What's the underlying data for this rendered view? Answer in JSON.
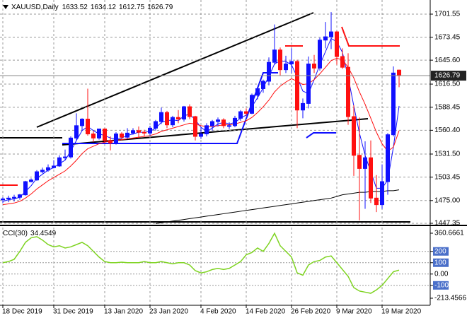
{
  "chart_data": [
    {
      "type": "candlestick",
      "title": "XAUUSD,Daily",
      "categories": [
        "18 Dec 2019",
        null,
        null,
        null,
        null,
        null,
        null,
        null,
        null,
        "31 Dec 2019",
        null,
        null,
        null,
        null,
        null,
        null,
        null,
        null,
        "13 Jan 2020",
        null,
        null,
        null,
        null,
        null,
        null,
        null,
        "23 Jan 2020",
        null,
        null,
        null,
        null,
        null,
        null,
        null,
        null,
        "4 Feb 2020",
        null,
        null,
        null,
        null,
        null,
        null,
        null,
        "14 Feb 2020",
        null,
        null,
        null,
        null,
        null,
        null,
        null,
        "26 Feb 2020",
        null,
        null,
        null,
        null,
        null,
        null,
        null,
        "9 Mar 2020",
        null,
        null,
        null,
        null,
        null,
        null,
        null,
        "19 Mar 2020",
        null,
        null,
        null
      ],
      "open": [
        1476,
        1477,
        1478,
        1479,
        1482,
        1498,
        1500,
        1510,
        1512,
        1515,
        1517,
        1527,
        1528,
        1551,
        1566,
        1574,
        1556,
        1551,
        1562,
        1548,
        1545,
        1556,
        1552,
        1557,
        1560,
        1558,
        1557,
        1563,
        1571,
        1582,
        1567,
        1576,
        1574,
        1589,
        1577,
        1553,
        1556,
        1566,
        1571,
        1573,
        1566,
        1566,
        1575,
        1583,
        1581,
        1603,
        1611,
        1620,
        1643,
        1658,
        1634,
        1641,
        1644,
        1585,
        1593,
        1641,
        1636,
        1670,
        1674,
        1680,
        1650,
        1637,
        1577,
        1530,
        1514,
        1527,
        1478,
        1470,
        1498,
        1555,
        1633.52
      ],
      "high": [
        1479,
        1481,
        1482,
        1483,
        1499,
        1502,
        1512,
        1515,
        1519,
        1524,
        1530,
        1537,
        1553,
        1581,
        1575,
        1611,
        1560,
        1562,
        1563,
        1553,
        1558,
        1558,
        1563,
        1563,
        1565,
        1561,
        1566,
        1573,
        1588,
        1584,
        1578,
        1585,
        1590,
        1592,
        1578,
        1564,
        1569,
        1573,
        1576,
        1575,
        1570,
        1578,
        1585,
        1587,
        1605,
        1613,
        1622,
        1649,
        1689,
        1661,
        1651,
        1660,
        1646,
        1599,
        1650,
        1652,
        1673,
        1692,
        1704,
        1681,
        1660,
        1654,
        1591,
        1576,
        1547,
        1548,
        1506,
        1519,
        1557,
        1638,
        1634.12
      ],
      "low": [
        1472,
        1473,
        1474,
        1476,
        1481,
        1497,
        1499,
        1508,
        1510,
        1514,
        1516,
        1524,
        1526,
        1548,
        1560,
        1554,
        1546,
        1549,
        1545,
        1536,
        1543,
        1548,
        1550,
        1555,
        1551,
        1553,
        1554,
        1560,
        1568,
        1563,
        1564,
        1569,
        1571,
        1574,
        1548,
        1550,
        1553,
        1560,
        1565,
        1563,
        1562,
        1564,
        1572,
        1578,
        1580,
        1598,
        1606,
        1615,
        1640,
        1627,
        1630,
        1630,
        1563,
        1575,
        1587,
        1630,
        1633,
        1660,
        1659,
        1640,
        1635,
        1567,
        1505,
        1451,
        1465,
        1472,
        1461,
        1465,
        1482,
        1553,
        1612.75
      ],
      "close": [
        1477,
        1478,
        1479,
        1482,
        1498,
        1500,
        1510,
        1512,
        1515,
        1517,
        1527,
        1528,
        1551,
        1566,
        1574,
        1556,
        1551,
        1562,
        1548,
        1545,
        1556,
        1552,
        1557,
        1560,
        1558,
        1557,
        1563,
        1571,
        1582,
        1567,
        1576,
        1574,
        1589,
        1577,
        1553,
        1556,
        1566,
        1571,
        1573,
        1566,
        1566,
        1575,
        1583,
        1581,
        1603,
        1611,
        1620,
        1643,
        1658,
        1634,
        1641,
        1644,
        1585,
        1593,
        1641,
        1636,
        1670,
        1674,
        1680,
        1650,
        1637,
        1577,
        1530,
        1514,
        1527,
        1478,
        1470,
        1498,
        1555,
        1630,
        1626.79
      ],
      "up_color": "#1010ff",
      "down_color": "#ff1010",
      "series": [
        {
          "color": "#1010ff",
          "values": [
            1474,
            1476,
            1477,
            1479,
            1486,
            1493,
            1502,
            1507,
            1512,
            1515,
            1520,
            1524,
            1535,
            1548,
            1560,
            1565,
            1560,
            1556,
            1554,
            1551,
            1550,
            1551,
            1554,
            1556,
            1558,
            1558,
            1559,
            1563,
            1570,
            1572,
            1573,
            1572,
            1578,
            1580,
            1573,
            1564,
            1559,
            1563,
            1568,
            1570,
            1568,
            1570,
            1575,
            1579,
            1589,
            1600,
            1612,
            1626,
            1641,
            1645,
            1644,
            1640,
            1625,
            1608,
            1605,
            1622,
            1640,
            1656,
            1672,
            1668,
            1655,
            1625,
            1590,
            1557,
            1530,
            1510,
            1490,
            1490,
            1500,
            1540,
            1590
          ]
        },
        {
          "color": "#ff1010",
          "values": [
            1470,
            1471,
            1472,
            1474,
            1478,
            1483,
            1489,
            1494,
            1499,
            1503,
            1507,
            1511,
            1517,
            1524,
            1532,
            1538,
            1541,
            1544,
            1546,
            1547,
            1548,
            1549,
            1550,
            1551,
            1552,
            1553,
            1554,
            1556,
            1559,
            1561,
            1563,
            1565,
            1567,
            1569,
            1568,
            1566,
            1565,
            1565,
            1566,
            1567,
            1567,
            1568,
            1570,
            1572,
            1576,
            1582,
            1589,
            1597,
            1607,
            1614,
            1619,
            1623,
            1620,
            1616,
            1617,
            1622,
            1629,
            1637,
            1645,
            1648,
            1646,
            1637,
            1624,
            1607,
            1592,
            1575,
            1558,
            1544,
            1535,
            1540,
            1560
          ]
        },
        {
          "color": "#000000",
          "values": [
            null,
            null,
            null,
            null,
            null,
            null,
            null,
            null,
            null,
            null,
            null,
            null,
            null,
            null,
            null,
            null,
            null,
            null,
            null,
            null,
            null,
            null,
            null,
            null,
            null,
            null,
            null,
            1447,
            1448,
            1449,
            1450,
            1451,
            1452,
            1453,
            1454,
            1455,
            1456,
            1457,
            1458,
            1459,
            1460,
            1461,
            1462,
            1463,
            1464,
            1465,
            1466,
            1467,
            1468,
            1469,
            1470,
            1471,
            1472,
            1473,
            1474,
            1475,
            1476,
            1477,
            1478,
            1480,
            1482,
            1483,
            1484,
            1485,
            1485,
            1486,
            1486,
            1486,
            1487,
            1487,
            1488
          ]
        }
      ],
      "ylim": [
        1447.35,
        1701.55
      ],
      "yticks": [
        1701.55,
        1673.45,
        {
          "value": 1645.6,
          "label": "1645.60"
        },
        {
          "value": 1616.5,
          "label": "1616.50"
        },
        1588.45,
        {
          "value": 1560.4,
          "label": "1560.40"
        },
        {
          "value": 1531.5,
          "label": "1531.50"
        },
        1503.45,
        {
          "value": 1475,
          "label": "1475.00"
        },
        1447.35
      ],
      "grid": true
    },
    {
      "type": "line",
      "title": "CCI(30)",
      "color": "#7ed321",
      "values": [
        100,
        110,
        130,
        200,
        280,
        320,
        330,
        300,
        260,
        240,
        250,
        230,
        240,
        260,
        280,
        250,
        200,
        150,
        110,
        100,
        100,
        105,
        100,
        100,
        100,
        110,
        100,
        100,
        110,
        100,
        90,
        100,
        100,
        80,
        30,
        10,
        20,
        40,
        50,
        40,
        50,
        80,
        110,
        170,
        190,
        230,
        200,
        270,
        360,
        250,
        200,
        150,
        10,
        -10,
        80,
        110,
        120,
        150,
        160,
        100,
        40,
        -20,
        -120,
        -150,
        -160,
        -170,
        -140,
        -100,
        -40,
        20,
        34.4549
      ],
      "ylim": [
        -213.4566,
        360.6661
      ],
      "yticks": [
        360.6661,
        200,
        100,
        {
          "value": 0,
          "label": "0.00"
        },
        -100,
        -213.4566
      ],
      "grid": true
    }
  ]
}
